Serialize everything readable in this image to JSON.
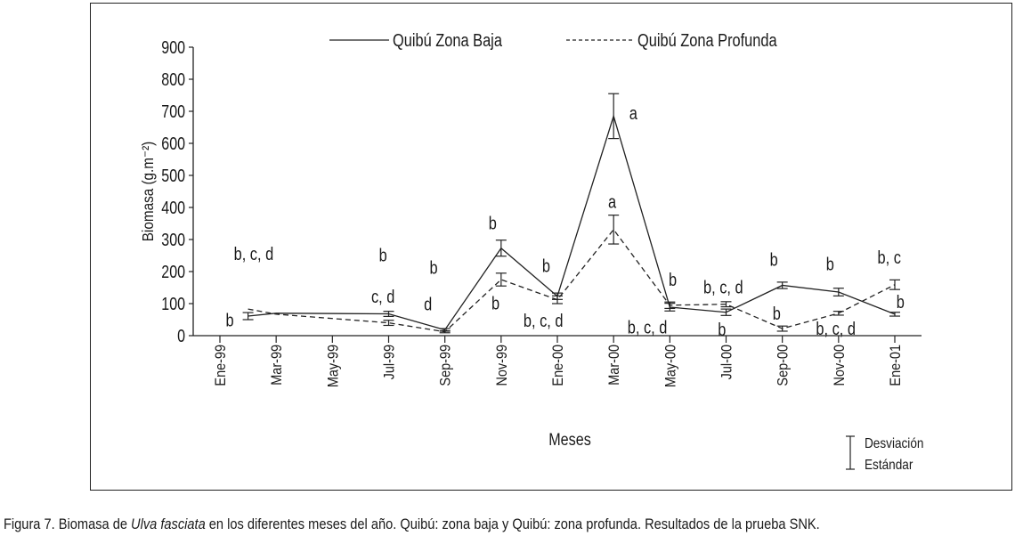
{
  "chart_data": {
    "type": "line",
    "title": "",
    "xlabel": "Meses",
    "ylabel": "Biomasa (g.m⁻²)",
    "ylim": [
      0,
      900
    ],
    "yticks": [
      0,
      100,
      200,
      300,
      400,
      500,
      600,
      700,
      800,
      900
    ],
    "x_tick_labels": [
      "Ene-99",
      "Mar-99",
      "May-99",
      "Jul-99",
      "Sep-99",
      "Nov-99",
      "Ene-00",
      "Mar-00",
      "May-00",
      "Jul-00",
      "Sep-00",
      "Nov-00",
      "Ene-01"
    ],
    "x_tick_months": [
      0,
      2,
      4,
      6,
      8,
      10,
      12,
      14,
      16,
      18,
      20,
      22,
      24
    ],
    "x_unit": "months since Ene-99",
    "legend_position": "top",
    "series": [
      {
        "name": "Quibú Zona Baja",
        "style": "solid",
        "x": [
          1,
          2,
          6,
          8,
          10,
          12,
          14,
          16,
          18,
          20,
          22,
          24
        ],
        "values": [
          61,
          70,
          68,
          18,
          273,
          123,
          685,
          89,
          73,
          157,
          136,
          67
        ],
        "error": [
          11,
          null,
          8,
          4,
          25,
          10,
          70,
          12,
          10,
          10,
          12,
          6
        ]
      },
      {
        "name": "Quibú Zona Profunda",
        "style": "dashed",
        "x": [
          1,
          2,
          6,
          8,
          10,
          12,
          14,
          16,
          18,
          20,
          22,
          24
        ],
        "values": [
          83,
          67,
          40,
          12,
          175,
          112,
          331,
          95,
          98,
          22,
          70,
          159
        ],
        "error": [
          null,
          null,
          8,
          3,
          20,
          12,
          45,
          10,
          8,
          8,
          6,
          15
        ]
      }
    ],
    "annotations": [
      {
        "text": "b, c, d",
        "x": 1.2,
        "y": 255
      },
      {
        "text": "b",
        "x": 0.35,
        "y": 48
      },
      {
        "text": "b",
        "x": 5.8,
        "y": 252
      },
      {
        "text": "c, d",
        "x": 5.8,
        "y": 122
      },
      {
        "text": "b",
        "x": 7.6,
        "y": 212
      },
      {
        "text": "d",
        "x": 7.4,
        "y": 98
      },
      {
        "text": "b",
        "x": 9.7,
        "y": 352
      },
      {
        "text": "b",
        "x": 9.8,
        "y": 102
      },
      {
        "text": "b",
        "x": 11.6,
        "y": 218
      },
      {
        "text": "b, c, d",
        "x": 11.5,
        "y": 47
      },
      {
        "text": "a",
        "x": 14.7,
        "y": 695
      },
      {
        "text": "a",
        "x": 13.95,
        "y": 418
      },
      {
        "text": "b",
        "x": 16.1,
        "y": 175
      },
      {
        "text": "b, c, d",
        "x": 15.2,
        "y": 27
      },
      {
        "text": "b, c, d",
        "x": 17.9,
        "y": 152
      },
      {
        "text": "b",
        "x": 17.85,
        "y": 20
      },
      {
        "text": "b",
        "x": 19.7,
        "y": 238
      },
      {
        "text": "b",
        "x": 19.8,
        "y": 70
      },
      {
        "text": "b",
        "x": 21.7,
        "y": 224
      },
      {
        "text": "b, c, d",
        "x": 21.9,
        "y": 22
      },
      {
        "text": "b, c",
        "x": 23.8,
        "y": 244
      },
      {
        "text": "b",
        "x": 24.2,
        "y": 105
      }
    ],
    "error_legend": [
      "Desviación",
      "Estándar"
    ]
  },
  "caption": {
    "prefix": "Figura 7. Biomasa de ",
    "species": "Ulva fasciata",
    "suffix": " en los diferentes meses del año. Quibú: zona baja y Quibú: zona profunda. Resultados de la prueba  SNK."
  }
}
